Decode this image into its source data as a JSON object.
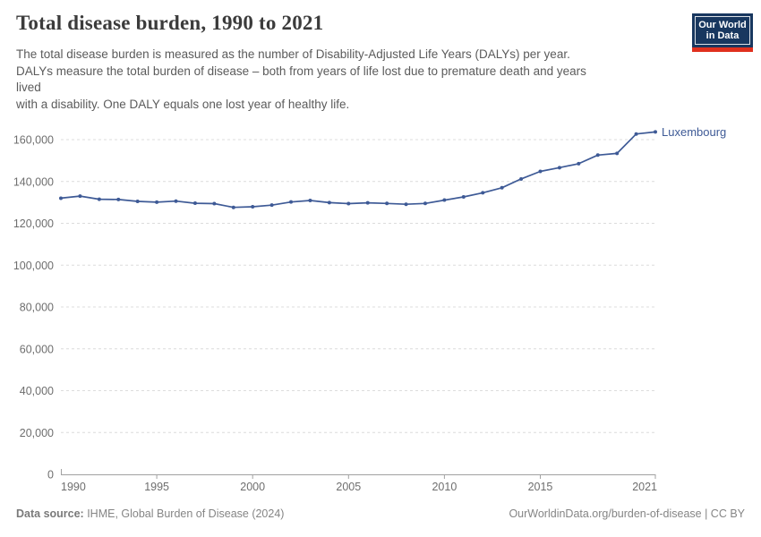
{
  "header": {
    "title": "Total disease burden, 1990 to 2021",
    "subtitle": "The total disease burden is measured as the number of Disability-Adjusted Life Years (DALYs) per year.\nDALYs measure the total burden of disease – both from years of life lost due to premature death and years\nlived\nwith a disability. One DALY equals one lost year of healthy life.",
    "logo": {
      "line1": "Our World",
      "line2": "in Data",
      "bg_color": "#18375f",
      "accent_color": "#e0301e"
    }
  },
  "chart_data": {
    "type": "line",
    "title": "Total disease burden, 1990 to 2021",
    "xlabel": "",
    "ylabel": "",
    "x": [
      1990,
      1991,
      1992,
      1993,
      1994,
      1995,
      1996,
      1997,
      1998,
      1999,
      2000,
      2001,
      2002,
      2003,
      2004,
      2005,
      2006,
      2007,
      2008,
      2009,
      2010,
      2011,
      2012,
      2013,
      2014,
      2015,
      2016,
      2017,
      2018,
      2019,
      2020,
      2021
    ],
    "series": [
      {
        "name": "Luxembourg",
        "color": "#3E5A96",
        "values": [
          132000,
          133000,
          131500,
          131400,
          130500,
          130100,
          130600,
          129600,
          129400,
          127600,
          127900,
          128700,
          130200,
          130900,
          129900,
          129400,
          129800,
          129500,
          129100,
          129500,
          131100,
          132600,
          134600,
          137000,
          141200,
          144800,
          146600,
          148500,
          152600,
          153400,
          162700,
          163700
        ]
      }
    ],
    "x_ticks": [
      1990,
      1995,
      2000,
      2005,
      2010,
      2015,
      2021
    ],
    "y_ticks": [
      0,
      20000,
      40000,
      60000,
      80000,
      100000,
      120000,
      140000,
      160000
    ],
    "xlim": [
      1990,
      2021
    ],
    "ylim": [
      0,
      167000
    ],
    "grid": "horizontal-dashed",
    "legend": "inline-label-at-line-end"
  },
  "footer": {
    "source_label": "Data source:",
    "source_value": " IHME, Global Burden of Disease (2024)",
    "credit": "OurWorldinData.org/burden-of-disease | CC BY"
  }
}
